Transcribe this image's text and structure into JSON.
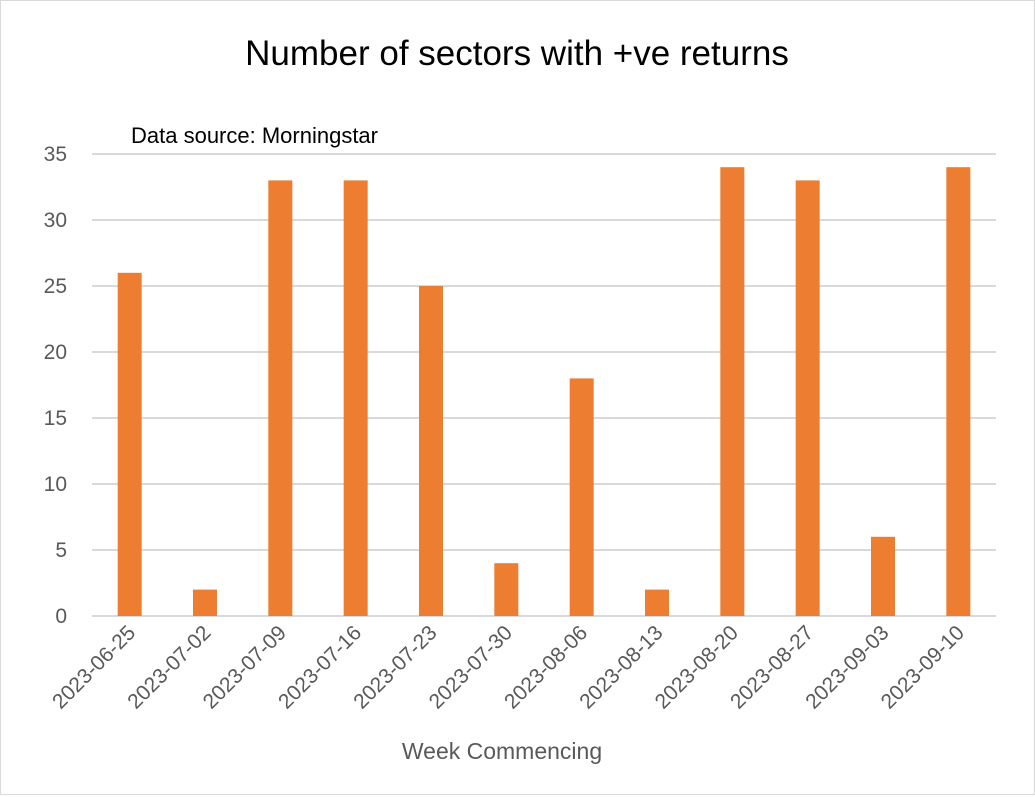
{
  "chart_data": {
    "type": "bar",
    "title": "Number of sectors with +ve returns",
    "annotation": "Data source: Morningstar",
    "xlabel": "Week Commencing",
    "ylabel": "",
    "categories": [
      "2023-06-25",
      "2023-07-02",
      "2023-07-09",
      "2023-07-16",
      "2023-07-23",
      "2023-07-30",
      "2023-08-06",
      "2023-08-13",
      "2023-08-20",
      "2023-08-27",
      "2023-09-03",
      "2023-09-10"
    ],
    "values": [
      26,
      2,
      33,
      33,
      25,
      4,
      18,
      2,
      34,
      33,
      6,
      34
    ],
    "ylim": [
      0,
      35
    ],
    "yticks": [
      0,
      5,
      10,
      15,
      20,
      25,
      30,
      35
    ],
    "grid": true,
    "legend": "none",
    "colors": {
      "bar": "#ED7D31",
      "gridline": "#D9D9D9",
      "tick_label": "#595959"
    }
  }
}
